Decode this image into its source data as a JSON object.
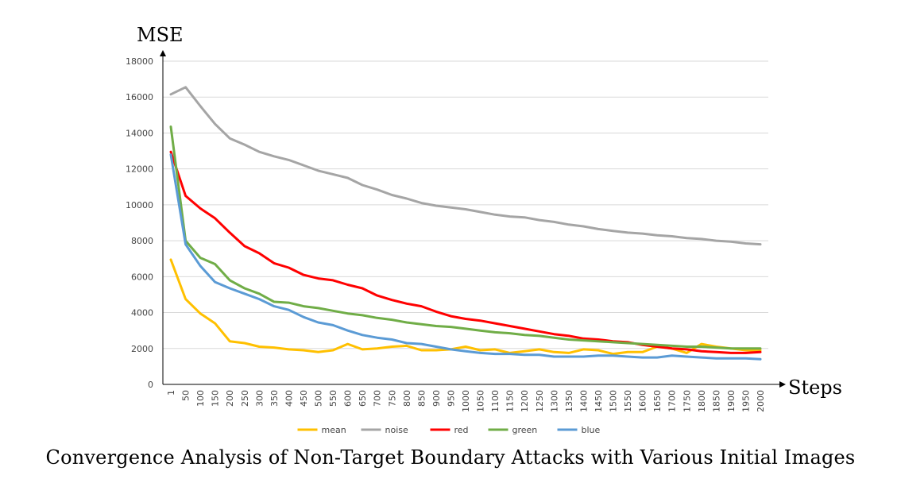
{
  "caption": "Convergence Analysis of Non-Target Boundary Attacks with Various Initial Images",
  "chart_data": {
    "type": "line",
    "title": "",
    "xlabel": "Steps",
    "ylabel": "MSE",
    "ylim": [
      0,
      18000
    ],
    "yticks": [
      0,
      2000,
      4000,
      6000,
      8000,
      10000,
      12000,
      14000,
      16000,
      18000
    ],
    "grid": true,
    "legend_position": "bottom",
    "categories": [
      "1",
      "50",
      "100",
      "150",
      "200",
      "250",
      "300",
      "350",
      "400",
      "450",
      "500",
      "550",
      "600",
      "650",
      "700",
      "750",
      "800",
      "850",
      "900",
      "950",
      "1000",
      "1050",
      "1100",
      "1150",
      "1200",
      "1250",
      "1300",
      "1350",
      "1400",
      "1450",
      "1500",
      "1550",
      "1600",
      "1650",
      "1700",
      "1750",
      "1800",
      "1850",
      "1900",
      "1950",
      "2000"
    ],
    "series": [
      {
        "name": "mean",
        "color": "#FFC000",
        "values": [
          6950,
          4750,
          3950,
          3400,
          2400,
          2300,
          2100,
          2050,
          1950,
          1900,
          1800,
          1900,
          2250,
          1950,
          2000,
          2100,
          2150,
          1900,
          1900,
          1950,
          2100,
          1900,
          1950,
          1750,
          1850,
          1950,
          1800,
          1750,
          1950,
          1900,
          1700,
          1800,
          1800,
          2100,
          2000,
          1750,
          2250,
          2100,
          2000,
          1900,
          1900
        ]
      },
      {
        "name": "noise",
        "color": "#A5A5A5",
        "values": [
          16150,
          16550,
          15500,
          14500,
          13700,
          13350,
          12950,
          12700,
          12500,
          12200,
          11900,
          11700,
          11500,
          11100,
          10850,
          10550,
          10350,
          10100,
          9950,
          9850,
          9750,
          9600,
          9450,
          9350,
          9300,
          9150,
          9050,
          8900,
          8800,
          8650,
          8550,
          8450,
          8400,
          8300,
          8250,
          8150,
          8100,
          8000,
          7950,
          7850,
          7800
        ]
      },
      {
        "name": "red",
        "color": "#FF0000",
        "values": [
          12950,
          10500,
          9800,
          9250,
          8450,
          7700,
          7300,
          6750,
          6500,
          6100,
          5900,
          5800,
          5550,
          5350,
          4950,
          4700,
          4500,
          4350,
          4050,
          3800,
          3650,
          3550,
          3400,
          3250,
          3100,
          2950,
          2800,
          2700,
          2550,
          2500,
          2400,
          2350,
          2200,
          2100,
          2000,
          1950,
          1850,
          1800,
          1750,
          1750,
          1800
        ]
      },
      {
        "name": "green",
        "color": "#70AD47",
        "values": [
          14350,
          8000,
          7050,
          6700,
          5800,
          5350,
          5050,
          4600,
          4550,
          4350,
          4250,
          4100,
          3950,
          3850,
          3700,
          3600,
          3450,
          3350,
          3250,
          3200,
          3100,
          3000,
          2900,
          2850,
          2750,
          2700,
          2600,
          2500,
          2450,
          2400,
          2350,
          2300,
          2250,
          2200,
          2150,
          2100,
          2100,
          2050,
          2000,
          2000,
          2000
        ]
      },
      {
        "name": "blue",
        "color": "#5B9BD5",
        "values": [
          12800,
          7800,
          6600,
          5700,
          5350,
          5050,
          4750,
          4350,
          4150,
          3750,
          3450,
          3300,
          3000,
          2750,
          2600,
          2500,
          2300,
          2250,
          2100,
          1950,
          1850,
          1750,
          1700,
          1700,
          1650,
          1650,
          1550,
          1550,
          1550,
          1600,
          1600,
          1550,
          1500,
          1500,
          1600,
          1550,
          1500,
          1450,
          1450,
          1450,
          1400
        ]
      }
    ]
  }
}
